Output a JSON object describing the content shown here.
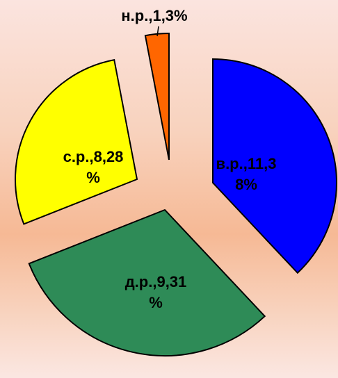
{
  "chart_data": {
    "type": "pie",
    "exploded": true,
    "slices": [
      {
        "key": "vr",
        "label_lines": [
          "в.р.,11,3",
          "8%"
        ],
        "value": 38,
        "color": "#0000ff"
      },
      {
        "key": "dr",
        "label_lines": [
          "д.р.,9,31",
          "%"
        ],
        "value": 31,
        "color": "#2e8b57"
      },
      {
        "key": "sr",
        "label_lines": [
          "с.р.,8,28",
          "%"
        ],
        "value": 28,
        "color": "#ffff00"
      },
      {
        "key": "nr",
        "label_lines": [
          "н.р.,1,3%"
        ],
        "value": 3,
        "color": "#ff6600"
      }
    ],
    "colors": {
      "outline": "#000000"
    }
  }
}
